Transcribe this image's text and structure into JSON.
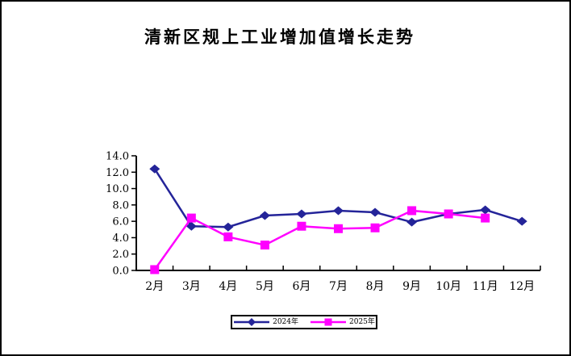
{
  "frame": {
    "background": "#ffffff",
    "border_color": "#000000",
    "axis_color": "#000000",
    "text_color": "#000000"
  },
  "chart_data": {
    "type": "line",
    "title": "清新区规上工业增加值增长走势",
    "categories": [
      "2月",
      "3月",
      "4月",
      "5月",
      "6月",
      "7月",
      "8月",
      "9月",
      "10月",
      "11月",
      "12月"
    ],
    "series": [
      {
        "name": "2024年",
        "color": "#242499",
        "marker": "diamond",
        "values": [
          12.4,
          5.4,
          5.3,
          6.7,
          6.9,
          7.3,
          7.1,
          5.9,
          6.9,
          7.4,
          6.0
        ]
      },
      {
        "name": "2025年",
        "color": "#ff00ff",
        "marker": "square",
        "values": [
          0.1,
          6.4,
          4.1,
          3.1,
          5.4,
          5.1,
          5.2,
          7.3,
          6.9,
          6.4
        ]
      }
    ],
    "ylim": [
      0,
      14
    ],
    "ytick_step": 2,
    "ytick_decimals": 1,
    "grid": false,
    "legend_position": "bottom"
  }
}
